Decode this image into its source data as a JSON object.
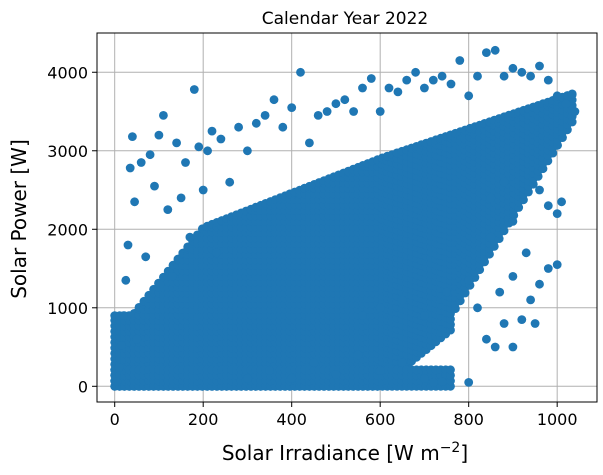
{
  "chart_data": {
    "type": "scatter",
    "title": "Calendar Year 2022",
    "xlabel": "Solar Irradiance [W m",
    "xlabel_sup": "−2",
    "xlabel_end": "]",
    "ylabel": "Solar Power [W]",
    "xlim": [
      -40,
      1090
    ],
    "ylim": [
      -200,
      4500
    ],
    "xticks": [
      0,
      200,
      400,
      600,
      800,
      1000
    ],
    "yticks": [
      0,
      1000,
      2000,
      3000,
      4000
    ],
    "grid": true,
    "marker_color": "#1f77b4",
    "series": [
      {
        "points": [
          [
            5,
            60
          ],
          [
            10,
            240
          ],
          [
            15,
            520
          ],
          [
            20,
            900
          ],
          [
            25,
            1350
          ],
          [
            30,
            1800
          ],
          [
            35,
            2780
          ],
          [
            40,
            3180
          ],
          [
            45,
            2350
          ],
          [
            50,
            600
          ],
          [
            60,
            2850
          ],
          [
            70,
            1650
          ],
          [
            80,
            2950
          ],
          [
            90,
            2550
          ],
          [
            100,
            3200
          ],
          [
            110,
            3450
          ],
          [
            120,
            2250
          ],
          [
            130,
            1400
          ],
          [
            140,
            3100
          ],
          [
            150,
            2400
          ],
          [
            160,
            2850
          ],
          [
            170,
            1900
          ],
          [
            180,
            3780
          ],
          [
            190,
            3050
          ],
          [
            200,
            2500
          ],
          [
            210,
            3000
          ],
          [
            220,
            3250
          ],
          [
            230,
            1700
          ],
          [
            240,
            3150
          ],
          [
            260,
            2600
          ],
          [
            280,
            3300
          ],
          [
            300,
            3000
          ],
          [
            320,
            3350
          ],
          [
            340,
            3450
          ],
          [
            360,
            3650
          ],
          [
            380,
            3300
          ],
          [
            400,
            3550
          ],
          [
            420,
            4000
          ],
          [
            440,
            3100
          ],
          [
            460,
            3450
          ],
          [
            480,
            3500
          ],
          [
            500,
            3600
          ],
          [
            520,
            3650
          ],
          [
            540,
            3500
          ],
          [
            560,
            3800
          ],
          [
            580,
            3920
          ],
          [
            600,
            3500
          ],
          [
            620,
            3800
          ],
          [
            640,
            3750
          ],
          [
            660,
            3900
          ],
          [
            680,
            4000
          ],
          [
            700,
            3800
          ],
          [
            720,
            3900
          ],
          [
            740,
            3950
          ],
          [
            760,
            3850
          ],
          [
            780,
            4150
          ],
          [
            800,
            3700
          ],
          [
            820,
            3950
          ],
          [
            840,
            4250
          ],
          [
            860,
            4280
          ],
          [
            880,
            3950
          ],
          [
            900,
            4050
          ],
          [
            920,
            4000
          ],
          [
            940,
            3950
          ],
          [
            960,
            4080
          ],
          [
            980,
            3900
          ],
          [
            1000,
            3700
          ],
          [
            1020,
            3600
          ],
          [
            1040,
            3500
          ],
          [
            300,
            100
          ],
          [
            350,
            200
          ],
          [
            400,
            100
          ],
          [
            450,
            300
          ],
          [
            500,
            150
          ],
          [
            550,
            400
          ],
          [
            600,
            200
          ],
          [
            650,
            300
          ],
          [
            700,
            100
          ],
          [
            720,
            50
          ],
          [
            740,
            60
          ],
          [
            800,
            50
          ],
          [
            560,
            900
          ],
          [
            600,
            1000
          ],
          [
            650,
            1100
          ],
          [
            700,
            900
          ],
          [
            750,
            1200
          ],
          [
            800,
            1350
          ],
          [
            820,
            1000
          ],
          [
            840,
            600
          ],
          [
            860,
            500
          ],
          [
            880,
            800
          ],
          [
            900,
            500
          ],
          [
            920,
            850
          ],
          [
            940,
            1100
          ],
          [
            960,
            1300
          ],
          [
            980,
            1500
          ],
          [
            1000,
            1550
          ],
          [
            950,
            800
          ],
          [
            1010,
            2350
          ],
          [
            930,
            1700
          ],
          [
            900,
            1400
          ],
          [
            870,
            1200
          ],
          [
            850,
            1900
          ],
          [
            960,
            2500
          ],
          [
            980,
            2300
          ],
          [
            1000,
            2200
          ],
          [
            900,
            2100
          ],
          [
            880,
            2600
          ],
          [
            850,
            2400
          ]
        ]
      }
    ]
  }
}
